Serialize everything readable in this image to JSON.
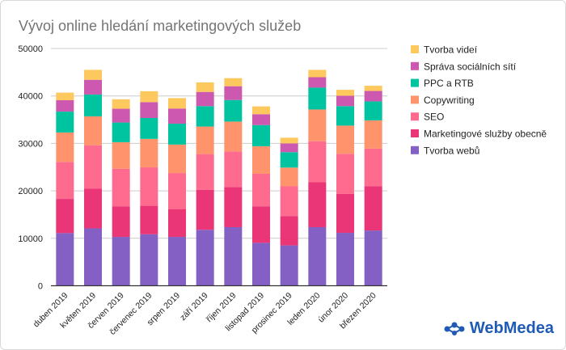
{
  "chart_data": {
    "type": "bar",
    "stacked": true,
    "title": "Vývoj online hledání marketingových služeb",
    "xlabel": "",
    "ylabel": "",
    "ylim": [
      0,
      50000
    ],
    "yticks": [
      0,
      10000,
      20000,
      30000,
      40000,
      50000
    ],
    "grid": true,
    "legend_position": "right",
    "categories": [
      "duben 2019",
      "květen 2019",
      "červen 2019",
      "červenec 2019",
      "srpen 2019",
      "září 2019",
      "říjen 2019",
      "listopad 2019",
      "prosinec 2019",
      "leden 2020",
      "únor 2020",
      "březen 2020"
    ],
    "series": [
      {
        "name": "Tvorba webů",
        "color": "#8560c4",
        "values": [
          11100,
          12100,
          10300,
          10850,
          10300,
          11800,
          12350,
          9050,
          8500,
          12350,
          11150,
          11650
        ]
      },
      {
        "name": "Marketingové služby obecně",
        "color": "#ea3577",
        "values": [
          7200,
          8400,
          6450,
          6000,
          5800,
          8400,
          8450,
          7700,
          6200,
          9450,
          8200,
          9350
        ]
      },
      {
        "name": "SEO",
        "color": "#ff6b8e",
        "values": [
          7800,
          9100,
          7900,
          8100,
          7650,
          7550,
          7500,
          6850,
          6250,
          8650,
          8450,
          7900
        ]
      },
      {
        "name": "Copywriting",
        "color": "#ff936c",
        "values": [
          6200,
          6100,
          5600,
          6000,
          6000,
          5800,
          6300,
          5800,
          3950,
          6700,
          5950,
          5950
        ]
      },
      {
        "name": "PPC a RTB",
        "color": "#00c4a0",
        "values": [
          4400,
          4600,
          4150,
          4400,
          4400,
          4300,
          4550,
          4450,
          3250,
          4600,
          4100,
          4000
        ]
      },
      {
        "name": "Správa sociálních sítí",
        "color": "#cc58b0",
        "values": [
          2400,
          3100,
          2900,
          3350,
          3200,
          3000,
          2900,
          2300,
          1850,
          2200,
          2200,
          2200
        ]
      },
      {
        "name": "Tvorba videí",
        "color": "#fdc85e",
        "values": [
          1600,
          2100,
          2000,
          2300,
          2200,
          2000,
          1700,
          1650,
          1200,
          1550,
          1250,
          1100
        ]
      }
    ]
  },
  "logo": {
    "text": "WebMedea",
    "color": "#1f5bb5"
  }
}
